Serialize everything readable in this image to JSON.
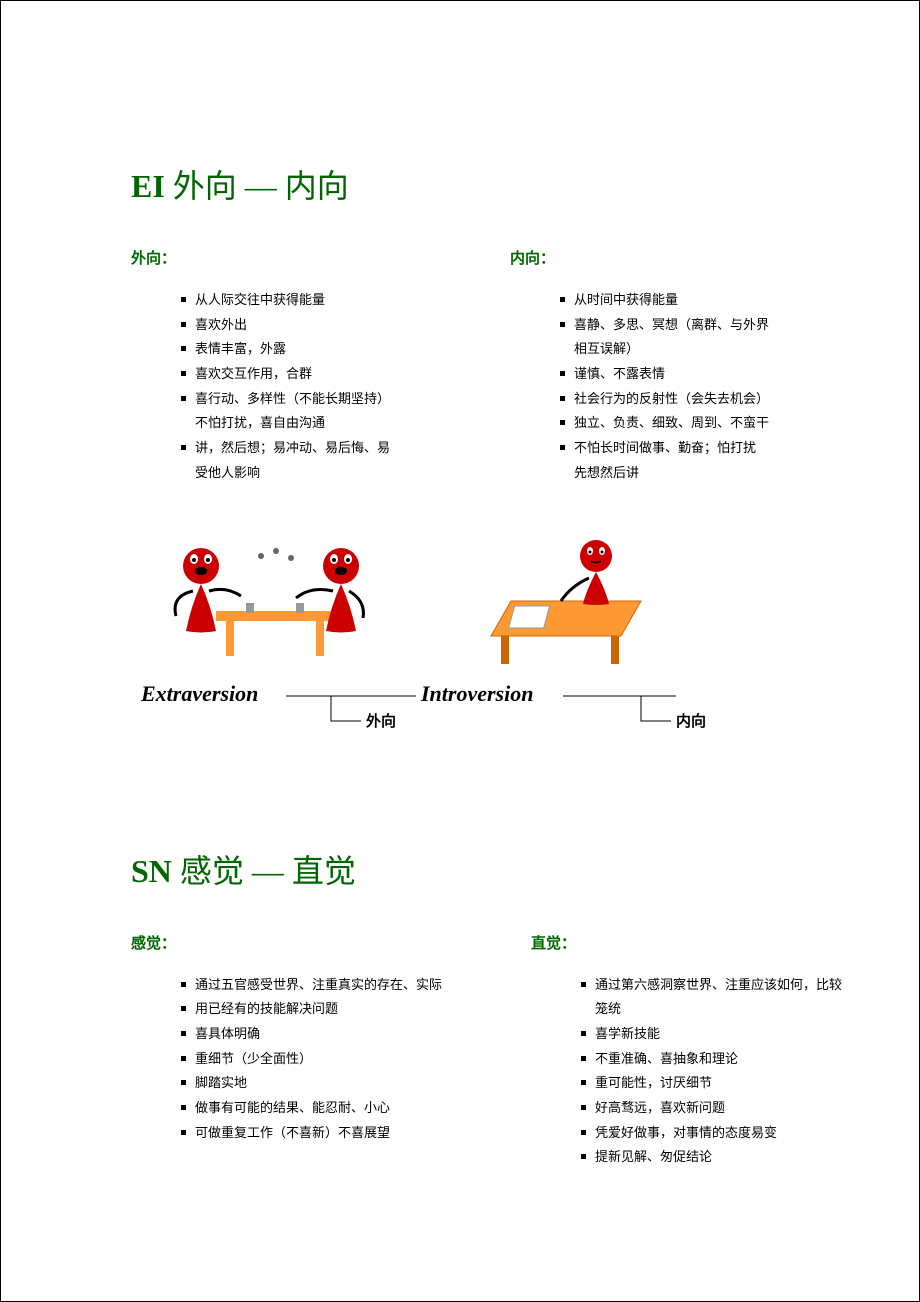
{
  "colors": {
    "accent": "#006600",
    "text": "#000000",
    "background": "#ffffff",
    "border": "#000000",
    "illus_red": "#cc0000",
    "illus_orange": "#ff9933",
    "illus_gray": "#666666",
    "illus_black": "#000000"
  },
  "typography": {
    "title_fontsize": 32,
    "heading_fontsize": 15,
    "body_fontsize": 13,
    "italic_label_fontsize": 22,
    "cn_label_fontsize": 15
  },
  "section1": {
    "title_prefix": "EI",
    "title_rest": " 外向 — 内向",
    "left": {
      "heading": "外向：",
      "items": [
        "从人际交往中获得能量",
        "喜欢外出",
        "表情丰富，外露",
        "喜欢交互作用，合群",
        "喜行动、多样性（不能长期坚持）",
        "不怕打扰，喜自由沟通",
        "讲，然后想；易冲动、易后悔、易",
        "受他人影响"
      ],
      "bullet_map": [
        true,
        true,
        true,
        true,
        true,
        false,
        true,
        false
      ]
    },
    "right": {
      "heading": "内向：",
      "items": [
        "从时间中获得能量",
        "喜静、多思、冥想（离群、与外界",
        "相互误解）",
        "谨慎、不露表情",
        "社会行为的反射性（会失去机会）",
        "独立、负责、细致、周到、不蛮干",
        "不怕长时间做事、勤奋；怕打扰",
        "先想然后讲"
      ],
      "bullet_map": [
        true,
        true,
        false,
        true,
        true,
        true,
        true,
        false
      ]
    },
    "illustration": {
      "left_label_en": "Extraversion",
      "left_label_cn": "外向",
      "right_label_en": "Introversion",
      "right_label_cn": "内向"
    }
  },
  "section2": {
    "title_prefix": "SN",
    "title_rest": " 感觉 — 直觉",
    "left": {
      "heading": "感觉：",
      "items": [
        "通过五官感受世界、注重真实的存在、实际",
        "用已经有的技能解决问题",
        "喜具体明确",
        "重细节（少全面性）",
        "脚踏实地",
        "做事有可能的结果、能忍耐、小心",
        "可做重复工作（不喜新）不喜展望"
      ],
      "bullet_map": [
        true,
        true,
        true,
        true,
        true,
        true,
        true
      ]
    },
    "right": {
      "heading": "直觉：",
      "items": [
        "通过第六感洞察世界、注重应该如何，比较",
        "笼统",
        "喜学新技能",
        "不重准确、喜抽象和理论",
        "重可能性，讨厌细节",
        "好高骛远，喜欢新问题",
        "凭爱好做事，对事情的态度易变",
        "提新见解、匆促结论"
      ],
      "bullet_map": [
        true,
        false,
        true,
        true,
        true,
        true,
        true,
        true
      ]
    }
  }
}
